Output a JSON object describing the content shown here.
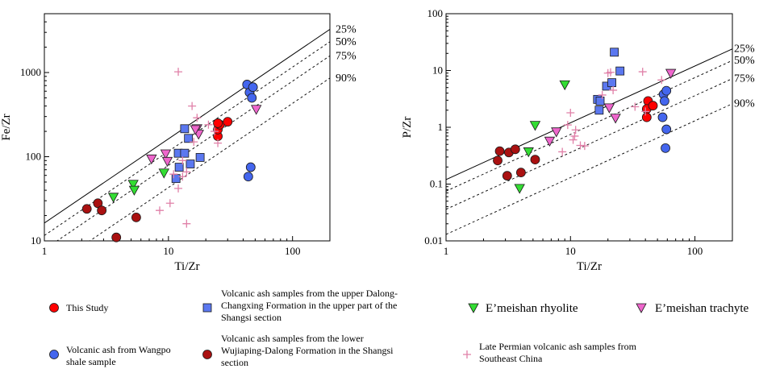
{
  "chart_data": [
    {
      "type": "scatter",
      "id": "fe",
      "title": "",
      "xlabel": "Ti/Zr",
      "ylabel": "Fe/Zr",
      "xscale": "log",
      "yscale": "log",
      "xlim": [
        1,
        200
      ],
      "ylim": [
        10,
        5000
      ],
      "xticks": [
        {
          "v": 1,
          "label": "1"
        },
        {
          "v": 10,
          "label": "10"
        },
        {
          "v": 100,
          "label": "100"
        }
      ],
      "yticks": [
        {
          "v": 10,
          "label": "10"
        },
        {
          "v": 100,
          "label": "100"
        },
        {
          "v": 1000,
          "label": "1000"
        }
      ],
      "mixing_lines": [
        {
          "label": "25%",
          "at_x1": 16.3,
          "solid": true
        },
        {
          "label": "50%",
          "at_x1": 11.6,
          "solid": false
        },
        {
          "label": "75%",
          "at_x1": 7.9,
          "solid": false
        },
        {
          "label": "90%",
          "at_x1": 4.3,
          "solid": false
        }
      ],
      "series": [
        {
          "name": "This Study",
          "marker": "circle",
          "color": "#ff0000",
          "points": [
            [
              25,
              175
            ],
            [
              25,
              210
            ],
            [
              26,
              240
            ],
            [
              30,
              260
            ],
            [
              25,
              250
            ]
          ]
        },
        {
          "name": "Volcanic ash samples from the upper Dalong-Changxing Formation in the upper part of the Shangsi section",
          "marker": "square",
          "color": "#5b78f0",
          "points": [
            [
              13.5,
              215
            ],
            [
              14.5,
              165
            ],
            [
              12,
              110
            ],
            [
              13.5,
              110
            ],
            [
              15,
              82
            ],
            [
              12.2,
              75
            ],
            [
              11.5,
              55
            ],
            [
              18,
              98
            ]
          ]
        },
        {
          "name": "E’meishan rhyolite",
          "marker": "triangle-down",
          "color": "#33dd33",
          "points": [
            [
              3.6,
              33
            ],
            [
              5.2,
              47
            ],
            [
              5.3,
              40
            ],
            [
              9.2,
              64
            ]
          ]
        },
        {
          "name": "E’meishan trachyte",
          "marker": "triangle-down",
          "color": "#ee66cc",
          "points": [
            [
              7.3,
              94
            ],
            [
              9.5,
              108
            ],
            [
              9.8,
              88
            ],
            [
              17,
              215
            ],
            [
              17.5,
              185
            ],
            [
              16.5,
              210
            ],
            [
              51,
              365
            ]
          ]
        },
        {
          "name": "Volcanic ash from Wangpo shale sample",
          "marker": "circle",
          "color": "#4466ee",
          "points": [
            [
              43,
              720
            ],
            [
              45,
              580
            ],
            [
              48,
              670
            ],
            [
              47,
              500
            ],
            [
              44,
              58
            ],
            [
              46,
              75
            ]
          ]
        },
        {
          "name": "Volcanic ash samples from the lower Wujiaping-Dalong Formation in the Shangsi section",
          "marker": "circle",
          "color": "#aa1111",
          "points": [
            [
              2.2,
              24
            ],
            [
              2.7,
              28
            ],
            [
              2.9,
              23
            ],
            [
              5.5,
              19
            ],
            [
              3.8,
              11
            ]
          ]
        },
        {
          "name": "Late Permian volcanic ash samples from Southeast China",
          "marker": "plus",
          "color": "#e080a8",
          "points": [
            [
              12,
              1020
            ],
            [
              15.5,
              400
            ],
            [
              17,
              290
            ],
            [
              16,
              150
            ],
            [
              21,
              240
            ],
            [
              23.5,
              200
            ],
            [
              25,
              145
            ],
            [
              13,
              90
            ],
            [
              11,
              62
            ],
            [
              13,
              58
            ],
            [
              14,
              66
            ],
            [
              8.5,
              23
            ],
            [
              10.3,
              28
            ],
            [
              14,
              16
            ],
            [
              12,
              42
            ]
          ]
        }
      ]
    },
    {
      "type": "scatter",
      "id": "p",
      "title": "",
      "xlabel": "Ti/Zr",
      "ylabel": "P/Zr",
      "xscale": "log",
      "yscale": "log",
      "xlim": [
        1,
        200
      ],
      "ylim": [
        0.01,
        100
      ],
      "xticks": [
        {
          "v": 1,
          "label": "1"
        },
        {
          "v": 10,
          "label": "10"
        },
        {
          "v": 100,
          "label": "100"
        }
      ],
      "yticks": [
        {
          "v": 0.01,
          "label": "0.01"
        },
        {
          "v": 0.1,
          "label": "0.1"
        },
        {
          "v": 1,
          "label": "1"
        },
        {
          "v": 10,
          "label": "10"
        },
        {
          "v": 100,
          "label": "100"
        }
      ],
      "mixing_lines": [
        {
          "label": "25%",
          "at_x1": 0.12,
          "solid": true
        },
        {
          "label": "50%",
          "at_x1": 0.075,
          "solid": false
        },
        {
          "label": "75%",
          "at_x1": 0.036,
          "solid": false
        },
        {
          "label": "90%",
          "at_x1": 0.013,
          "solid": false
        }
      ],
      "series": [
        {
          "name": "This Study",
          "marker": "circle",
          "color": "#ff0000",
          "points": [
            [
              42,
              2.9
            ],
            [
              41,
              2.1
            ],
            [
              46,
              2.4
            ],
            [
              41,
              1.5
            ]
          ]
        },
        {
          "name": "Volcanic ash samples from the upper Dalong-Changxing Formation in the upper part of the Shangsi section",
          "marker": "square",
          "color": "#5b78f0",
          "points": [
            [
              22.5,
              21
            ],
            [
              25,
              9.8
            ],
            [
              19.5,
              5.3
            ],
            [
              21.5,
              6.1
            ],
            [
              16.5,
              3.1
            ],
            [
              17.3,
              2.9
            ],
            [
              17,
              2.0
            ]
          ]
        },
        {
          "name": "E’meishan rhyolite",
          "marker": "triangle-down",
          "color": "#33dd33",
          "points": [
            [
              9,
              5.6
            ],
            [
              5.2,
              1.08
            ],
            [
              4.6,
              0.37
            ],
            [
              3.9,
              0.084
            ]
          ]
        },
        {
          "name": "E’meishan trachyte",
          "marker": "triangle-down",
          "color": "#ee66cc",
          "points": [
            [
              20.5,
              2.2
            ],
            [
              23,
              1.45
            ],
            [
              7.7,
              0.83
            ],
            [
              6.8,
              0.57
            ],
            [
              64,
              8.9
            ]
          ]
        },
        {
          "name": "Volcanic ash from Wangpo shale sample",
          "marker": "circle",
          "color": "#4466ee",
          "points": [
            [
              56,
              3.8
            ],
            [
              59,
              4.4
            ],
            [
              57,
              2.9
            ],
            [
              55,
              1.5
            ],
            [
              59,
              0.92
            ],
            [
              58,
              0.43
            ]
          ]
        },
        {
          "name": "Volcanic ash samples from the lower Wujiaping-Dalong Formation in the Shangsi section",
          "marker": "circle",
          "color": "#aa1111",
          "points": [
            [
              2.7,
              0.38
            ],
            [
              3.2,
              0.36
            ],
            [
              3.6,
              0.41
            ],
            [
              2.6,
              0.26
            ],
            [
              3.1,
              0.14
            ],
            [
              4,
              0.16
            ],
            [
              5.2,
              0.27
            ]
          ]
        },
        {
          "name": "Late Permian volcanic ash samples from Southeast China",
          "marker": "plus",
          "color": "#e080a8",
          "points": [
            [
              38,
              9.5
            ],
            [
              20,
              9
            ],
            [
              21,
              9.3
            ],
            [
              22,
              4.5
            ],
            [
              18,
              3.7
            ],
            [
              33,
              2.3
            ],
            [
              40,
              1.9
            ],
            [
              10,
              1.8
            ],
            [
              9.5,
              1.1
            ],
            [
              11,
              0.9
            ],
            [
              10.8,
              0.7
            ],
            [
              10.5,
              0.6
            ],
            [
              12,
              0.48
            ],
            [
              13,
              0.47
            ],
            [
              8.6,
              0.37
            ],
            [
              54,
              6.8
            ]
          ]
        }
      ]
    }
  ],
  "legend": {
    "items": [
      {
        "id": "this-study",
        "text": [
          "This Study"
        ]
      },
      {
        "id": "upper-dalong",
        "text": [
          "Volcanic ash samples from the upper Dalong-",
          "Changxing Formation in the upper part of the",
          "Shangsi section"
        ]
      },
      {
        "id": "rhyolite",
        "text": [
          "E’meishan rhyolite"
        ]
      },
      {
        "id": "trachyte",
        "text": [
          "E’meishan trachyte"
        ]
      },
      {
        "id": "wangpo",
        "text": [
          "Volcanic ash from Wangpo",
          "shale sample"
        ]
      },
      {
        "id": "lower-wujiaping",
        "text": [
          "Volcanic ash samples from the lower",
          "Wujiaping-Dalong Formation in the Shangsi",
          "section"
        ]
      },
      {
        "id": "late-permian",
        "text": [
          "Late Permian volcanic ash samples from",
          "Southeast China"
        ]
      }
    ]
  }
}
